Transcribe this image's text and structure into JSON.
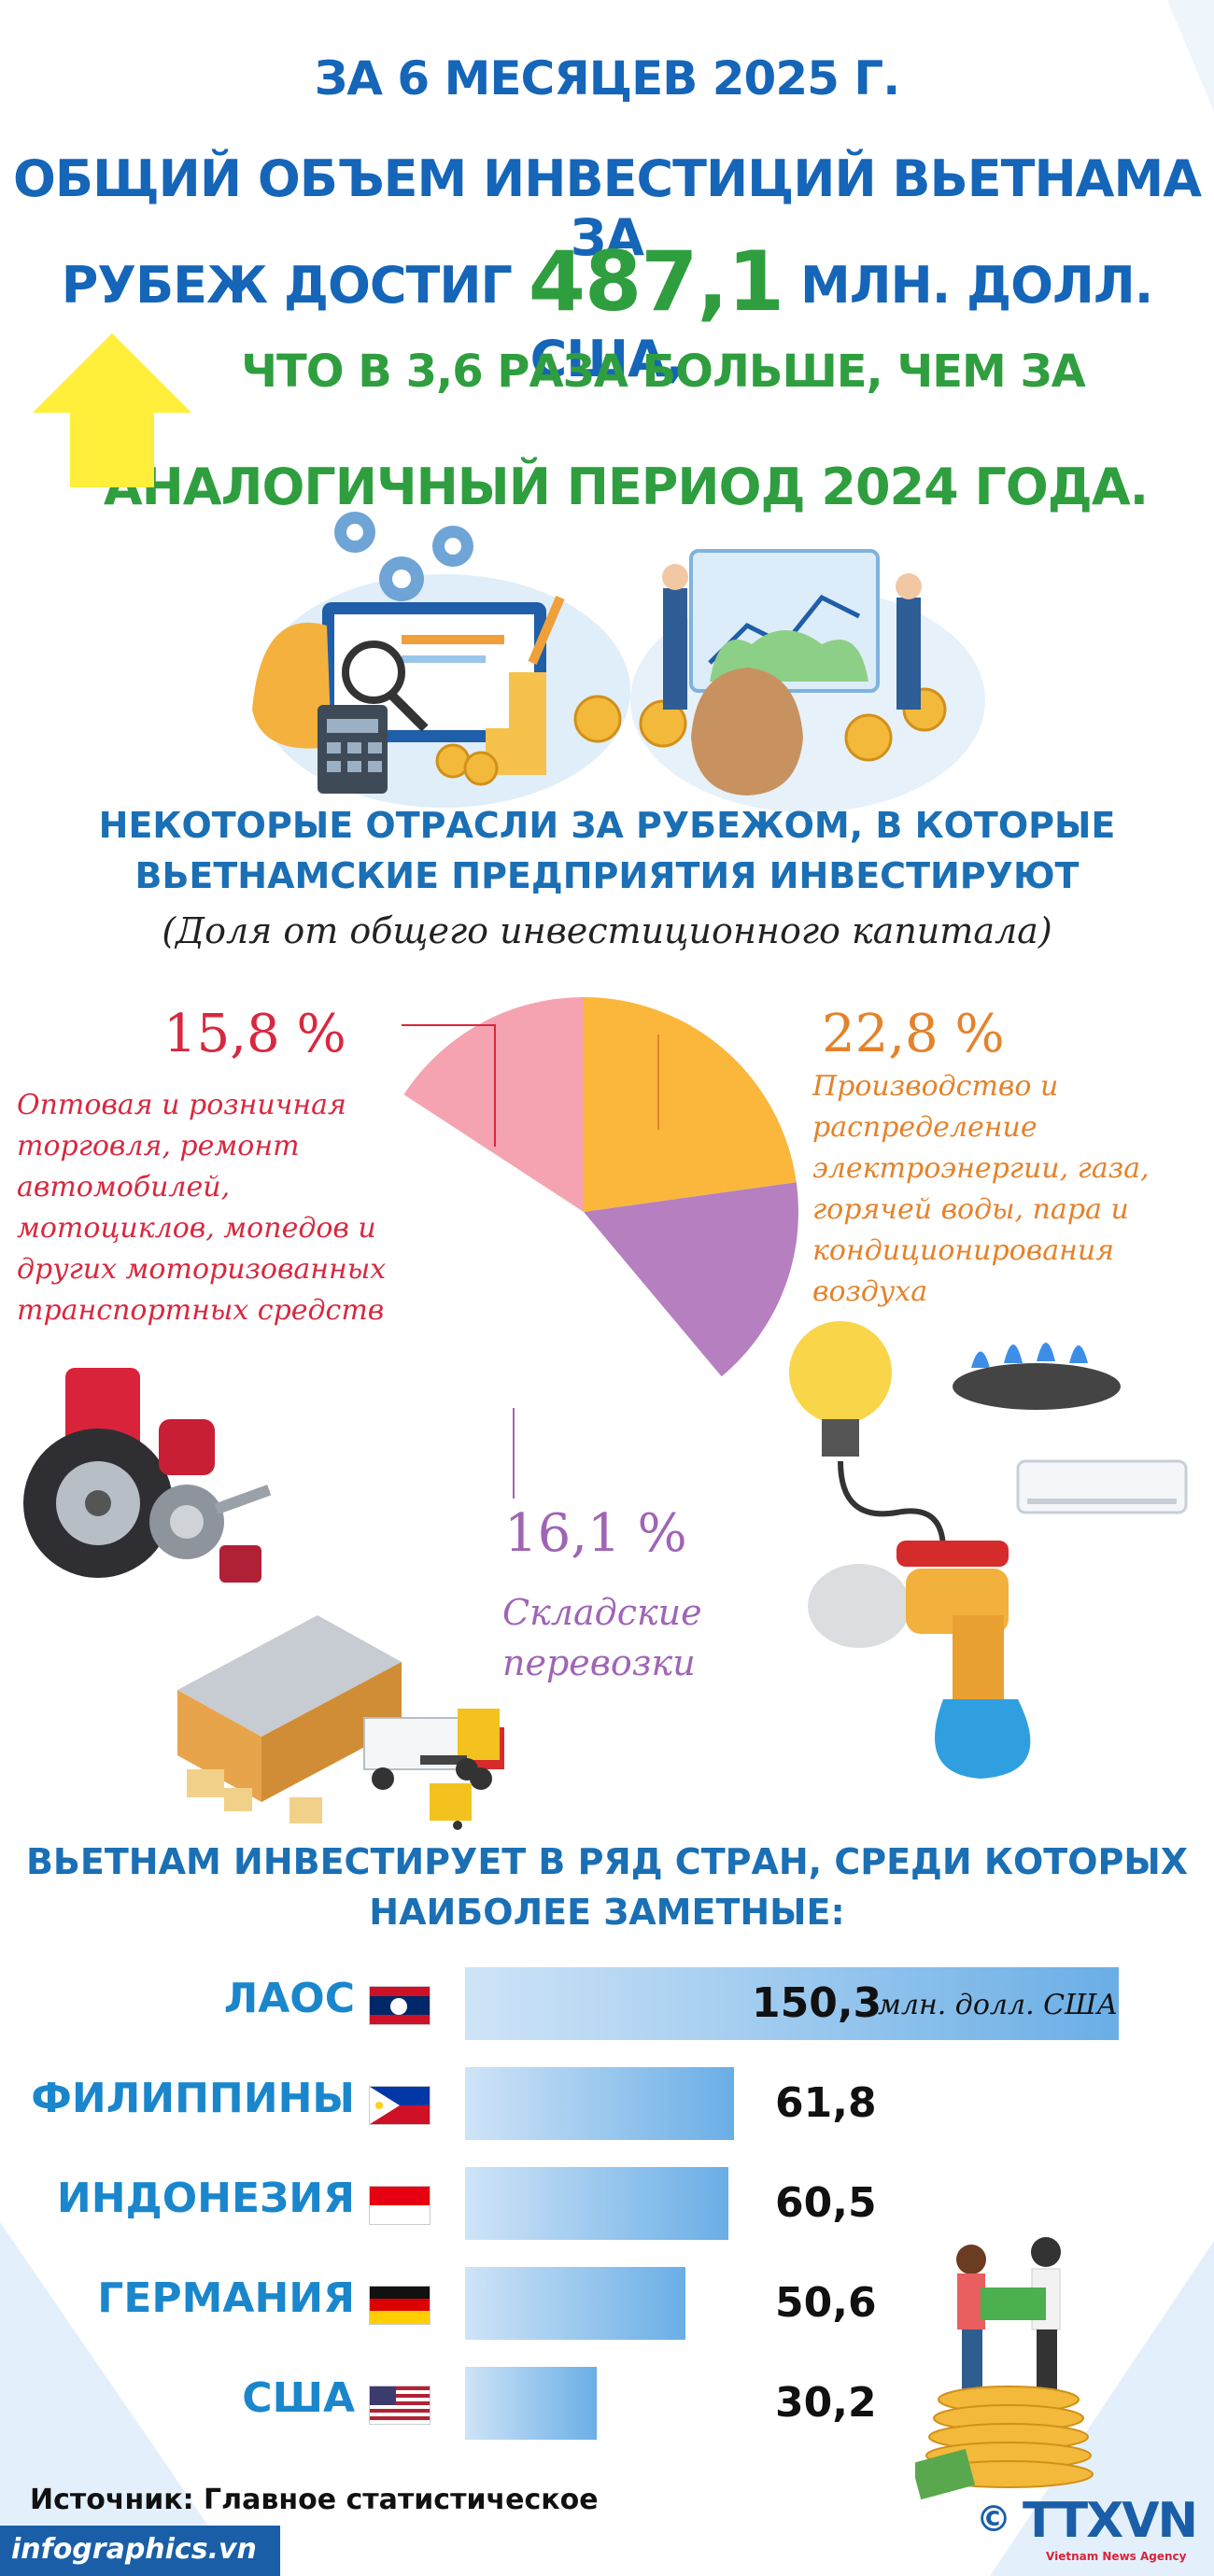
{
  "header": {
    "line1": "ЗА 6 МЕСЯЦЕВ 2025 Г.",
    "line2": "ОБЩИЙ ОБЪЕМ ИНВЕСТИЦИЙ ВЬЕТНАМА ЗА",
    "line3_pre": "РУБЕЖ ДОСТИГ",
    "line3_big": "487,1",
    "line3_post": "МЛН. ДОЛЛ. США,",
    "line4": "ЧТО В 3,6 РАЗА БОЛЬШЕ, ЧЕМ ЗА",
    "line5": "АНАЛОГИЧНЫЙ ПЕРИОД 2024 ГОДА.",
    "arrow_color": "#ffee3a"
  },
  "sectors": {
    "title_line1": "НЕКОТОРЫЕ ОТРАСЛИ ЗА РУБЕЖОМ, В КОТОРЫЕ",
    "title_line2": "ВЬЕТНАМСКИЕ ПРЕДПРИЯТИЯ ИНВЕСТИРУЮТ",
    "subtitle": "(Доля от общего инвестиционного капитала)"
  },
  "countries": {
    "title_line1": "ВЬЕТНАМ ИНВЕСТИРУЕТ В РЯД СТРАН, СРЕДИ КОТОРЫХ",
    "title_line2": "НАИБОЛЕЕ ЗАМЕТНЫЕ:",
    "unit": "млн. долл. США"
  },
  "chart_data": [
    {
      "type": "pie",
      "slices": [
        {
          "label_line1": "Производство и",
          "label_line2": "распределение",
          "label_line3": "электроэнергии, газа,",
          "label_line4": "горячей воды, пара и",
          "label_line5": "кондиционирования",
          "label_line6": "воздуха",
          "value": 22.8,
          "display": "22,8 %",
          "color": "#fbb73c",
          "text_color": "#e5822a"
        },
        {
          "label_line1": "Складские",
          "label_line2": "перевозки",
          "value": 16.1,
          "display": "16,1 %",
          "color": "#b57fc0",
          "text_color": "#a064b5"
        },
        {
          "label_line1": "Оптовая и розничная",
          "label_line2": "торговля, ремонт",
          "label_line3": "автомобилей,",
          "label_line4": "мотоциклов, мопедов и",
          "label_line5": "других моторизованных",
          "label_line6": "транспортных средств",
          "value": 15.8,
          "display": "15,8 %",
          "color": "#f5a3b1",
          "text_color": "#d8283f"
        }
      ]
    },
    {
      "type": "bar",
      "orientation": "horizontal",
      "categories": [
        "ЛАОС",
        "ФИЛИППИНЫ",
        "ИНДОНЕЗИЯ",
        "ГЕРМАНИЯ",
        "США"
      ],
      "values": [
        150.3,
        61.8,
        60.5,
        50.6,
        30.2
      ],
      "display": [
        "150,3",
        "61,8",
        "60,5",
        "50,6",
        "30,2"
      ],
      "unit": "млн. долл. США"
    }
  ],
  "footer": {
    "source": "Источник: Главное статистическое",
    "site": "infographics.vn",
    "copyright": "©",
    "agency": "TTXVN",
    "agency_sub": "Vietnam News Agency"
  }
}
